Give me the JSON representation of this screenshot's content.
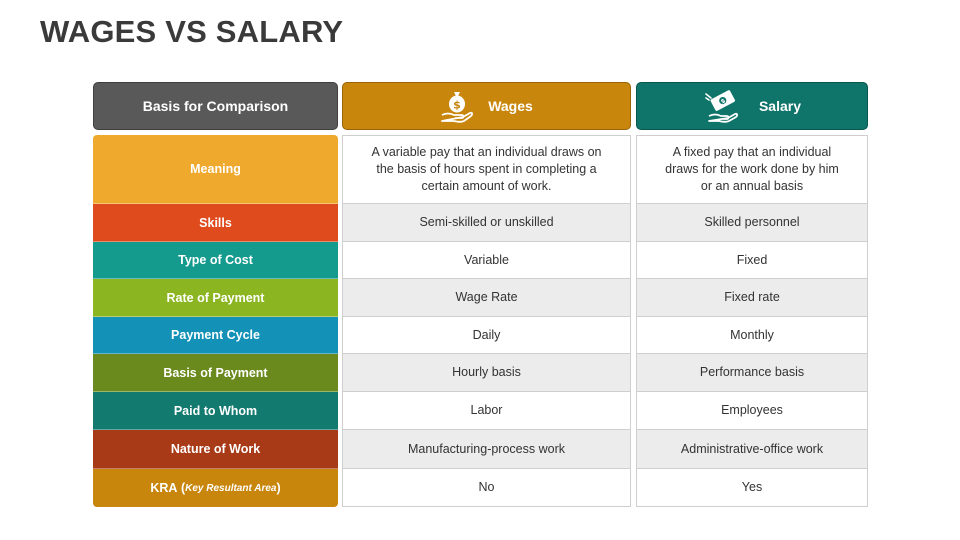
{
  "title": "WAGES VS SALARY",
  "headers": {
    "basis": "Basis for Comparison",
    "wages": "Wages",
    "salary": "Salary",
    "wages_icon": "money-bag-hand-icon",
    "salary_icon": "cash-hand-icon"
  },
  "colors": {
    "basis_header": "#595959",
    "wages_header": "#c8860d",
    "salary_header": "#0f7469"
  },
  "rows": [
    {
      "label": "Meaning",
      "color": "#efa92c",
      "wages": "A variable pay that an individual draws on the basis of hours spent in completing a certain amount of work.",
      "salary": "A fixed pay that an individual draws for the work done by him or an annual basis"
    },
    {
      "label": "Skills",
      "color": "#e04b1e",
      "wages": "Semi-skilled or unskilled",
      "salary": "Skilled personnel"
    },
    {
      "label": "Type of Cost",
      "color": "#159a8e",
      "wages": "Variable",
      "salary": "Fixed"
    },
    {
      "label": "Rate of Payment",
      "color": "#8cb522",
      "wages": "Wage Rate",
      "salary": "Fixed rate"
    },
    {
      "label": "Payment Cycle",
      "color": "#1391b7",
      "wages": "Daily",
      "salary": "Monthly"
    },
    {
      "label": "Basis of Payment",
      "color": "#6a8a1d",
      "wages": "Hourly basis",
      "salary": "Performance basis"
    },
    {
      "label": "Paid to Whom",
      "color": "#137a70",
      "wages": "Labor",
      "salary": "Employees"
    },
    {
      "label": "Nature of Work",
      "color": "#a83a17",
      "wages": "Manufacturing-process work",
      "salary": "Administrative-office work"
    },
    {
      "label": "KRA",
      "label_paren_open": "(",
      "label_note": "Key Resultant Area",
      "label_paren_close": ")",
      "color": "#c8860d",
      "wages": "No",
      "salary": "Yes"
    }
  ]
}
